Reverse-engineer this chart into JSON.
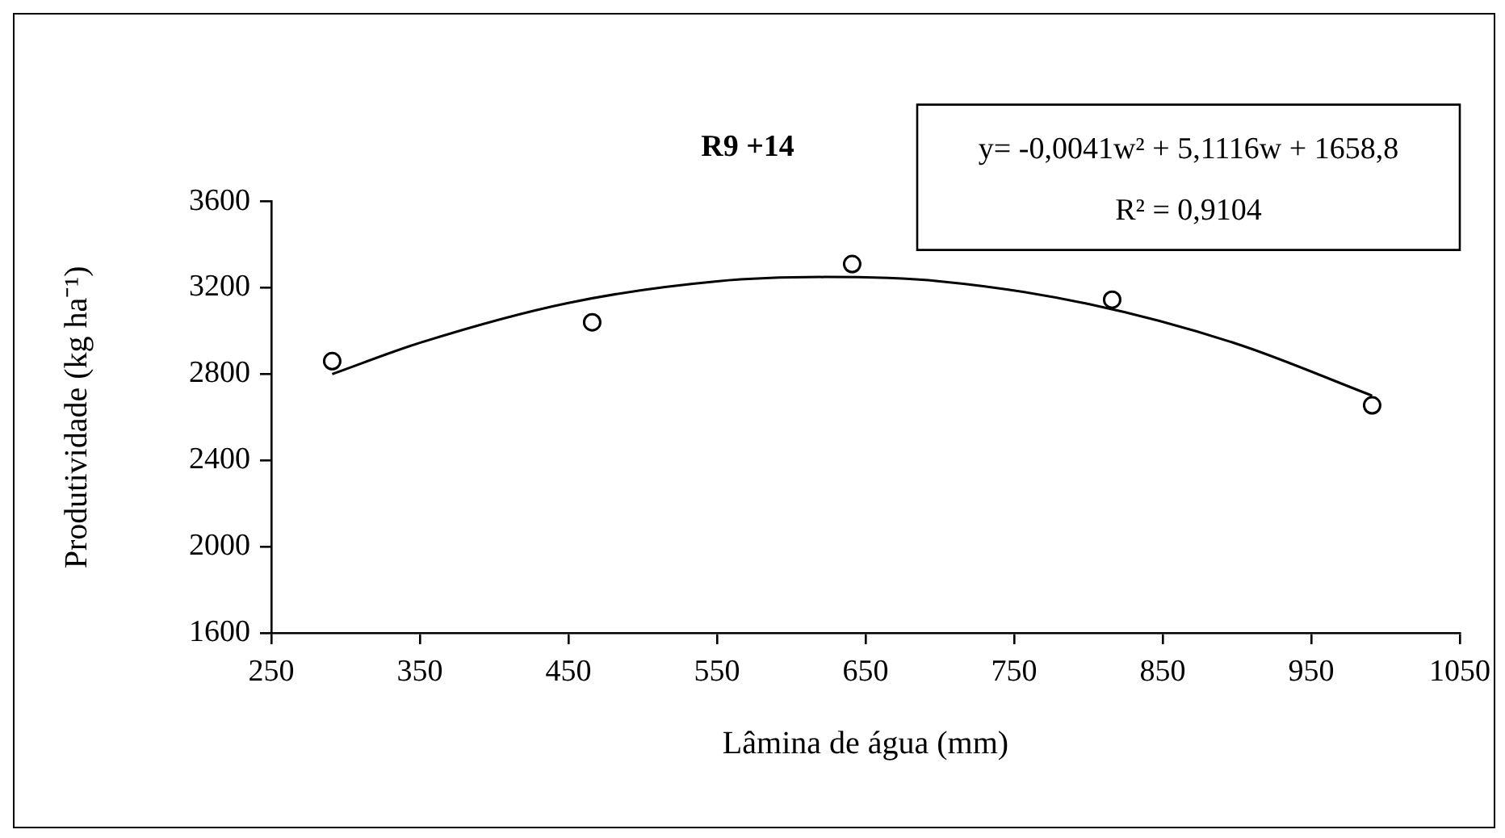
{
  "chart_data": {
    "type": "scatter",
    "title": "R9 +14",
    "xlabel": "Lâmina de água (mm)",
    "ylabel": "Produtividade (kg ha⁻¹)",
    "xlim": [
      250,
      1050
    ],
    "xticks": [
      250,
      350,
      450,
      550,
      650,
      750,
      850,
      950,
      1050
    ],
    "ylim": [
      1600,
      3600
    ],
    "yticks": [
      1600,
      2000,
      2400,
      2800,
      3200,
      3600
    ],
    "grid": false,
    "legend": false,
    "marker": "circle",
    "annotations": [
      "y= -0,0041w² + 5,1116w + 1658,8",
      "R² = 0,9104"
    ],
    "series": [
      {
        "color": "#000000",
        "x": [
          291,
          466,
          641,
          816,
          991
        ],
        "values": [
          2860,
          3040,
          3310,
          3145,
          2655
        ]
      },
      {
        "type": "line",
        "color": "#000000",
        "marker": "none",
        "x": [
          291,
          350,
          450,
          550,
          623,
          700,
          800,
          900,
          991
        ],
        "values": [
          2800,
          2945,
          3130,
          3230,
          3250,
          3230,
          3125,
          2940,
          2700
        ]
      }
    ]
  }
}
